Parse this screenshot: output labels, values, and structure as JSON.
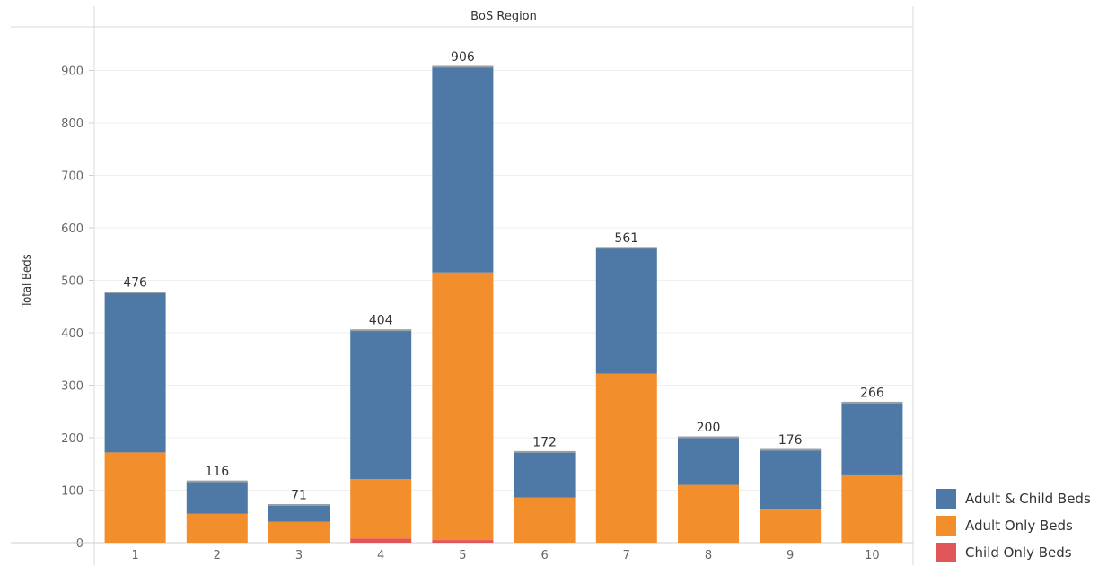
{
  "chart_data": {
    "type": "bar",
    "stacked": true,
    "title": "BoS Region",
    "xlabel": "",
    "ylabel": "Total Beds",
    "ylim": [
      0,
      1000
    ],
    "yticks": [
      0,
      100,
      200,
      300,
      400,
      500,
      600,
      700,
      800,
      900
    ],
    "grid": true,
    "categories": [
      "1",
      "2",
      "3",
      "4",
      "5",
      "6",
      "7",
      "8",
      "9",
      "10"
    ],
    "series": [
      {
        "name": "Child Only Beds",
        "color": "#e15759",
        "values": [
          0,
          0,
          0,
          8,
          5,
          0,
          0,
          0,
          0,
          0
        ]
      },
      {
        "name": "Adult Only Beds",
        "color": "#f28e2b",
        "values": [
          172,
          55,
          40,
          113,
          510,
          86,
          322,
          110,
          63,
          130
        ]
      },
      {
        "name": "Adult & Child Beds",
        "color": "#4e79a7",
        "values": [
          304,
          61,
          31,
          283,
          391,
          86,
          239,
          90,
          113,
          136
        ]
      }
    ],
    "totals": [
      476,
      116,
      71,
      404,
      906,
      172,
      561,
      200,
      176,
      266
    ],
    "legend_placement": "bottom-right",
    "legend": [
      "Adult & Child Beds",
      "Adult Only Beds",
      "Child Only Beds"
    ]
  }
}
